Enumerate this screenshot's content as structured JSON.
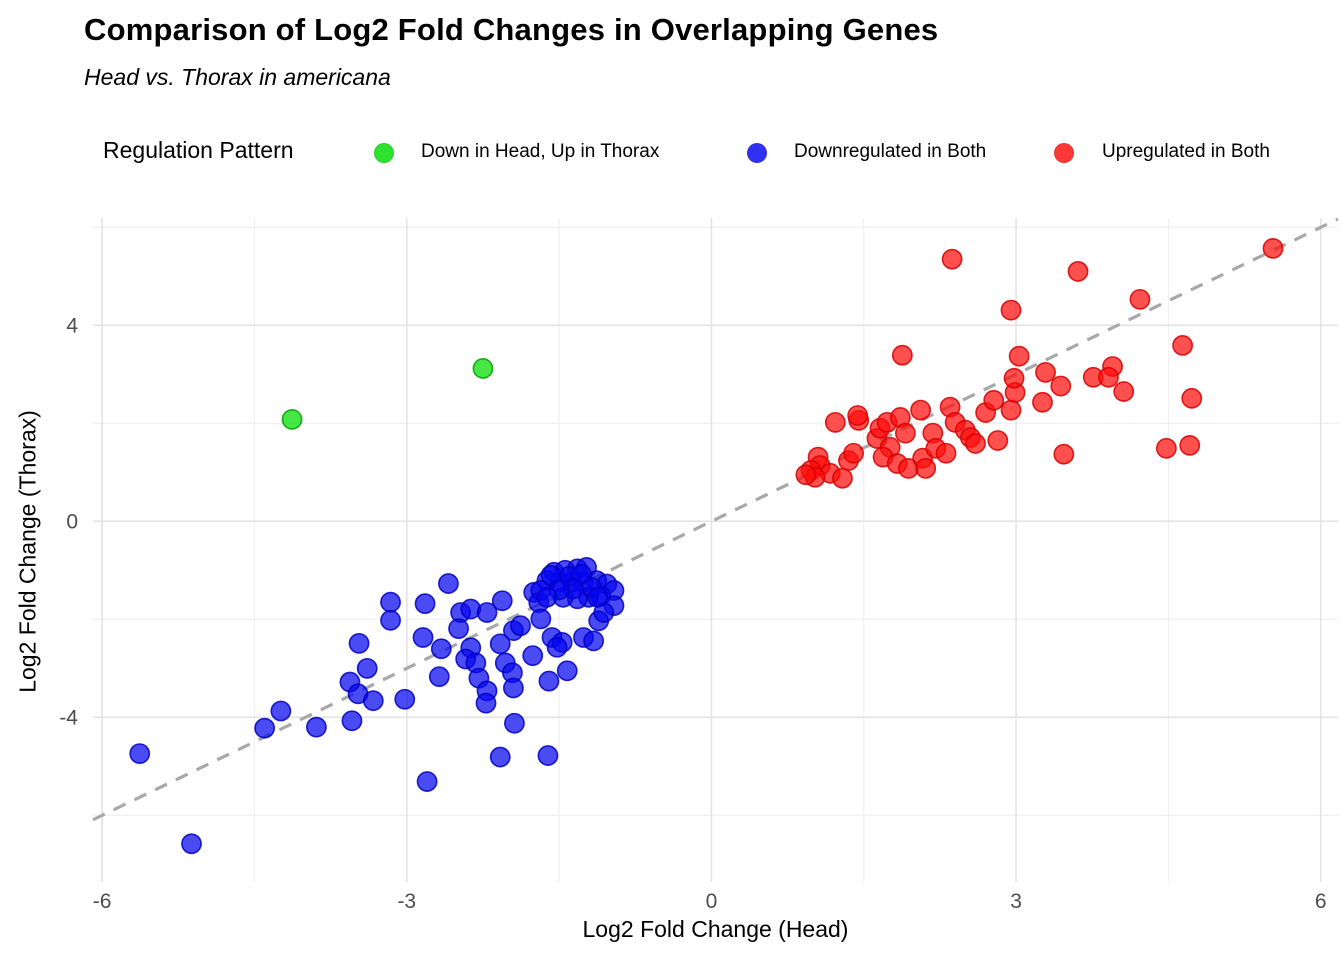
{
  "title": "Comparison of Log2 Fold Changes in Overlapping Genes",
  "subtitle": "Head vs. Thorax in americana",
  "legend": {
    "title": "Regulation Pattern",
    "items": [
      {
        "label": "Down in Head, Up in Thorax",
        "color": "#00DC00"
      },
      {
        "label": "Downregulated in Both",
        "color": "#0505F0"
      },
      {
        "label": "Upregulated in Both",
        "color": "#FF0D0D"
      }
    ]
  },
  "chart_data": {
    "type": "scatter",
    "title": "Comparison of Log2 Fold Changes in Overlapping Genes",
    "subtitle": "Head vs. Thorax in americana",
    "xlabel": "Log2 Fold Change (Head)",
    "ylabel": "Log2 Fold Change (Thorax)",
    "x_domain": [
      -6.09,
      6.17
    ],
    "y_domain": [
      -7.36,
      6.19
    ],
    "x_ticks": [
      -6,
      -3,
      0,
      3,
      6
    ],
    "y_ticks": [
      -4,
      0,
      4
    ],
    "x_minor_ticks": [
      -4.5,
      -1.5,
      1.5,
      4.5
    ],
    "y_minor_ticks": [
      -6,
      -2,
      2,
      6
    ],
    "grid": "on",
    "legend_position": "top",
    "identity_line": {
      "slope": 1,
      "intercept": 0,
      "style": "dashed",
      "color": "#A8A8A8"
    },
    "colors": {
      "major_grid": "#E3E3E3",
      "minor_grid": "#EFEFEF",
      "tick_text": "#4D4D4D"
    },
    "series": [
      {
        "name": "Downregulated in Both",
        "color": "#0505F0",
        "stroke": "#0000C0",
        "points": [
          [
            -5.63,
            -4.74
          ],
          [
            -5.12,
            -6.58
          ],
          [
            -4.24,
            -3.87
          ],
          [
            -4.4,
            -4.22
          ],
          [
            -3.89,
            -4.2
          ],
          [
            -3.54,
            -4.07
          ],
          [
            -3.47,
            -2.49
          ],
          [
            -3.56,
            -3.28
          ],
          [
            -3.39,
            -3.0
          ],
          [
            -3.48,
            -3.52
          ],
          [
            -3.33,
            -3.66
          ],
          [
            -3.16,
            -1.65
          ],
          [
            -3.16,
            -2.02
          ],
          [
            -2.82,
            -1.68
          ],
          [
            -2.59,
            -1.27
          ],
          [
            -2.84,
            -2.37
          ],
          [
            -2.66,
            -2.6
          ],
          [
            -2.68,
            -3.17
          ],
          [
            -3.02,
            -3.63
          ],
          [
            -2.47,
            -1.86
          ],
          [
            -2.37,
            -1.79
          ],
          [
            -2.49,
            -2.19
          ],
          [
            -2.37,
            -2.58
          ],
          [
            -2.21,
            -1.86
          ],
          [
            -2.42,
            -2.81
          ],
          [
            -2.32,
            -2.89
          ],
          [
            -2.29,
            -3.2
          ],
          [
            -2.21,
            -3.46
          ],
          [
            -2.22,
            -3.71
          ],
          [
            -2.06,
            -1.62
          ],
          [
            -2.08,
            -2.5
          ],
          [
            -2.03,
            -2.89
          ],
          [
            -1.95,
            -2.23
          ],
          [
            -1.88,
            -2.13
          ],
          [
            -1.96,
            -3.09
          ],
          [
            -1.95,
            -3.4
          ],
          [
            -1.75,
            -1.45
          ],
          [
            -1.7,
            -1.66
          ],
          [
            -1.68,
            -1.99
          ],
          [
            -1.57,
            -2.37
          ],
          [
            -1.47,
            -2.47
          ],
          [
            -1.52,
            -2.57
          ],
          [
            -1.76,
            -2.74
          ],
          [
            -1.6,
            -3.26
          ],
          [
            -1.42,
            -3.05
          ],
          [
            -1.26,
            -2.37
          ],
          [
            -1.16,
            -2.44
          ],
          [
            -1.11,
            -2.03
          ],
          [
            -1.55,
            -1.04
          ],
          [
            -1.44,
            -1.0
          ],
          [
            -1.32,
            -0.97
          ],
          [
            -1.23,
            -0.94
          ],
          [
            -1.62,
            -1.21
          ],
          [
            -1.49,
            -1.24
          ],
          [
            -1.37,
            -1.24
          ],
          [
            -1.26,
            -1.24
          ],
          [
            -1.13,
            -1.21
          ],
          [
            -1.03,
            -1.28
          ],
          [
            -0.96,
            -1.41
          ],
          [
            -1.09,
            -1.52
          ],
          [
            -1.21,
            -1.55
          ],
          [
            -1.32,
            -1.58
          ],
          [
            -1.46,
            -1.55
          ],
          [
            -1.68,
            -1.41
          ],
          [
            -0.96,
            -1.72
          ],
          [
            -1.06,
            -1.86
          ],
          [
            -1.58,
            -1.1
          ],
          [
            -1.4,
            -1.12
          ],
          [
            -1.28,
            -1.08
          ],
          [
            -1.18,
            -1.35
          ],
          [
            -1.36,
            -1.38
          ],
          [
            -1.5,
            -1.4
          ],
          [
            -1.62,
            -1.55
          ],
          [
            -1.12,
            -1.55
          ],
          [
            -1.94,
            -4.12
          ],
          [
            -2.08,
            -4.81
          ],
          [
            -1.61,
            -4.78
          ],
          [
            -2.8,
            -5.31
          ]
        ]
      },
      {
        "name": "Upregulated in Both",
        "color": "#FF0D0D",
        "stroke": "#D40000",
        "points": [
          [
            1.22,
            2.02
          ],
          [
            1.45,
            2.06
          ],
          [
            1.05,
            1.31
          ],
          [
            1.07,
            1.14
          ],
          [
            0.98,
            1.04
          ],
          [
            1.17,
            0.98
          ],
          [
            1.29,
            0.88
          ],
          [
            1.35,
            1.24
          ],
          [
            1.4,
            1.39
          ],
          [
            1.63,
            1.69
          ],
          [
            1.66,
            1.9
          ],
          [
            1.73,
            2.02
          ],
          [
            1.86,
            2.12
          ],
          [
            1.91,
            1.8
          ],
          [
            1.76,
            1.51
          ],
          [
            1.69,
            1.31
          ],
          [
            1.83,
            1.18
          ],
          [
            1.94,
            1.08
          ],
          [
            2.08,
            1.29
          ],
          [
            2.11,
            1.08
          ],
          [
            2.18,
            1.8
          ],
          [
            2.21,
            1.49
          ],
          [
            2.31,
            1.39
          ],
          [
            2.06,
            2.27
          ],
          [
            2.35,
            2.33
          ],
          [
            2.4,
            2.02
          ],
          [
            2.5,
            1.86
          ],
          [
            2.55,
            1.71
          ],
          [
            2.6,
            1.59
          ],
          [
            2.82,
            1.65
          ],
          [
            2.7,
            2.22
          ],
          [
            2.78,
            2.47
          ],
          [
            2.95,
            2.27
          ],
          [
            2.99,
            2.63
          ],
          [
            3.26,
            2.43
          ],
          [
            1.44,
            2.16
          ],
          [
            1.02,
            0.9
          ],
          [
            0.93,
            0.95
          ],
          [
            2.37,
            5.35
          ],
          [
            2.95,
            4.31
          ],
          [
            1.88,
            3.39
          ],
          [
            3.03,
            3.37
          ],
          [
            2.98,
            2.92
          ],
          [
            3.29,
            3.04
          ],
          [
            3.61,
            5.1
          ],
          [
            5.53,
            5.57
          ],
          [
            4.22,
            4.53
          ],
          [
            4.64,
            3.59
          ],
          [
            3.95,
            3.16
          ],
          [
            3.76,
            2.94
          ],
          [
            3.91,
            2.94
          ],
          [
            4.06,
            2.65
          ],
          [
            3.44,
            2.76
          ],
          [
            4.73,
            2.51
          ],
          [
            4.71,
            1.55
          ],
          [
            4.48,
            1.49
          ],
          [
            3.47,
            1.37
          ]
        ]
      },
      {
        "name": "Down in Head, Up in Thorax",
        "color": "#00DC00",
        "stroke": "#00A000",
        "points": [
          [
            -4.13,
            2.08
          ],
          [
            -2.25,
            3.12
          ]
        ]
      }
    ]
  }
}
